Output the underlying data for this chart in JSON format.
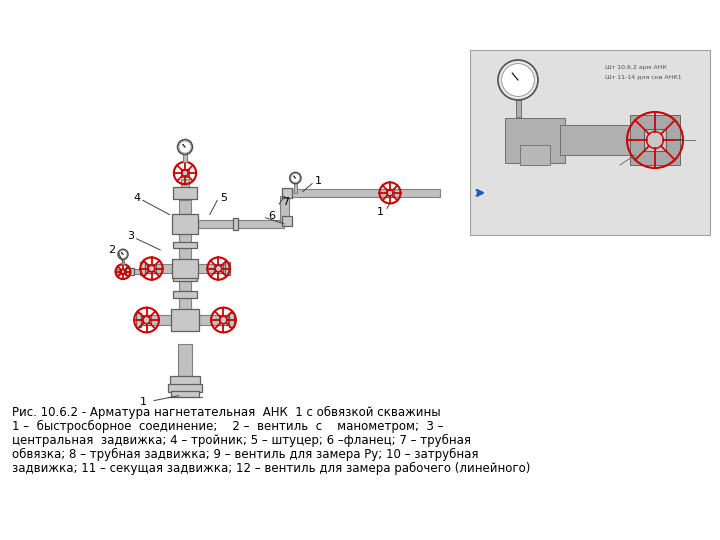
{
  "bg_color": "#ffffff",
  "title_line1": "Рис. 10.6.2 - Арматура нагнетательная  АНК  1 с обвязкой скважины",
  "title_line2": "1 –  быстросборное  соединение;    2 –  вентиль  с    манометром;  3 –",
  "title_line3": "центральная  задвижка; 4 – тройник; 5 – штуцер; 6 –фланец; 7 – трубная",
  "title_line4": "обвязка; 8 – трубная задвижка; 9 – вентиль для замера Ру; 10 – затрубная",
  "title_line5": "задвижка; 11 – секущая задвижка; 12 – вентиль для замера рабочего (линейного)",
  "valve_color": "#cc0000",
  "pipe_color": "#c0c0c0",
  "pipe_edge_color": "#808080",
  "body_color": "#c8c8c8",
  "body_edge_color": "#606060",
  "line_color": "#404040",
  "arrow_color": "#1a5bbf",
  "photo_bg": "#e0e0e0"
}
